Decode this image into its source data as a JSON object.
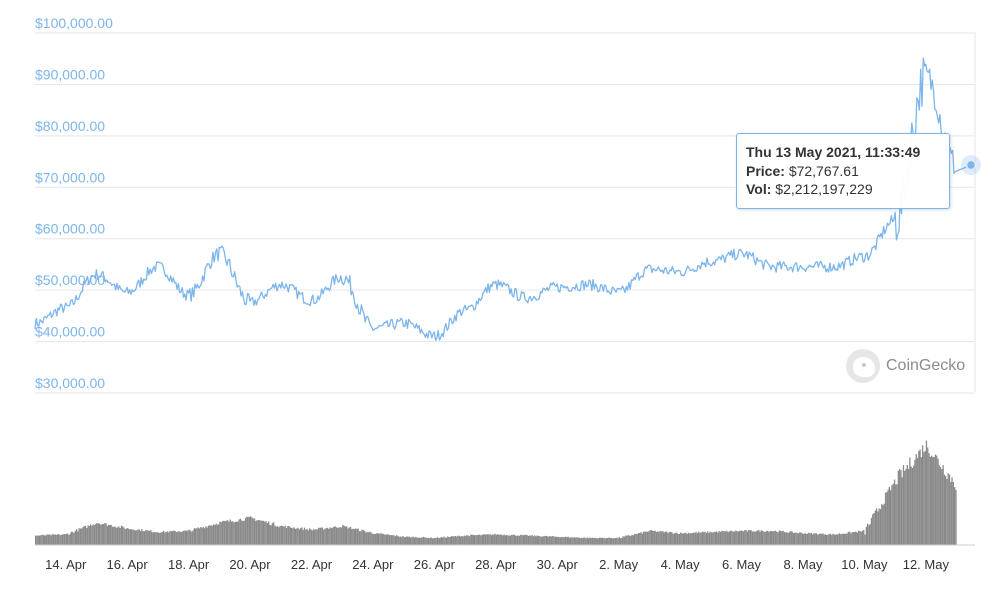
{
  "chart_data": [
    {
      "type": "line",
      "series": [
        {
          "name": "Price",
          "x": [
            "2021-04-13",
            "2021-04-14",
            "2021-04-15",
            "2021-04-16",
            "2021-04-17",
            "2021-04-18",
            "2021-04-19",
            "2021-04-20",
            "2021-04-21",
            "2021-04-22",
            "2021-04-23",
            "2021-04-24",
            "2021-04-25",
            "2021-04-26",
            "2021-04-27",
            "2021-04-28",
            "2021-04-29",
            "2021-04-30",
            "2021-05-01",
            "2021-05-02",
            "2021-05-03",
            "2021-05-04",
            "2021-05-05",
            "2021-05-06",
            "2021-05-07",
            "2021-05-08",
            "2021-05-09",
            "2021-05-10",
            "2021-05-11",
            "2021-05-12",
            "2021-05-13"
          ],
          "values": [
            42000,
            45000,
            51500,
            48000,
            53000,
            47500,
            55500,
            46000,
            49500,
            46500,
            51000,
            41000,
            42000,
            39500,
            44500,
            49500,
            47000,
            49000,
            49500,
            48000,
            52500,
            52000,
            54000,
            55500,
            53000,
            53000,
            53000,
            55000,
            62000,
            90000,
            72767.61
          ]
        }
      ],
      "y_ticks": [
        "$30,000.00",
        "$40,000.00",
        "$50,000.00",
        "$60,000.00",
        "$70,000.00",
        "$80,000.00",
        "$90,000.00",
        "$100,000.00"
      ],
      "ylim": [
        30000,
        100000
      ],
      "grid": true
    },
    {
      "type": "bar",
      "series": [
        {
          "name": "Vol",
          "x": [
            "2021-04-13",
            "2021-04-14",
            "2021-04-15",
            "2021-04-16",
            "2021-04-17",
            "2021-04-18",
            "2021-04-19",
            "2021-04-20",
            "2021-04-21",
            "2021-04-22",
            "2021-04-23",
            "2021-04-24",
            "2021-04-25",
            "2021-04-26",
            "2021-04-27",
            "2021-04-28",
            "2021-04-29",
            "2021-04-30",
            "2021-05-01",
            "2021-05-02",
            "2021-05-03",
            "2021-05-04",
            "2021-05-05",
            "2021-05-06",
            "2021-05-07",
            "2021-05-08",
            "2021-05-09",
            "2021-05-10",
            "2021-05-11",
            "2021-05-12",
            "2021-05-13"
          ],
          "values": [
            0.8,
            0.9,
            1.9,
            1.4,
            1.1,
            1.2,
            1.9,
            2.3,
            1.6,
            1.3,
            1.6,
            1.0,
            0.7,
            0.6,
            0.8,
            0.9,
            0.8,
            0.7,
            0.6,
            0.6,
            1.2,
            1.0,
            1.1,
            1.2,
            1.2,
            1.0,
            0.9,
            1.2,
            5.5,
            8.5,
            5.0
          ]
        }
      ]
    }
  ],
  "x_axis": {
    "tick_labels": [
      "14. Apr",
      "16. Apr",
      "18. Apr",
      "20. Apr",
      "22. Apr",
      "24. Apr",
      "26. Apr",
      "28. Apr",
      "30. Apr",
      "2. May",
      "4. May",
      "6. May",
      "8. May",
      "10. May",
      "12. May"
    ],
    "tick_dates": [
      "2021-04-14",
      "2021-04-16",
      "2021-04-18",
      "2021-04-20",
      "2021-04-22",
      "2021-04-24",
      "2021-04-26",
      "2021-04-28",
      "2021-04-30",
      "2021-05-02",
      "2021-05-04",
      "2021-05-06",
      "2021-05-08",
      "2021-05-10",
      "2021-05-12"
    ]
  },
  "tooltip": {
    "title": "Thu 13 May 2021, 11:33:49",
    "price_label": "Price:",
    "price_value": "$72,767.61",
    "vol_label": "Vol:",
    "vol_value": "$2,212,197,229"
  },
  "credit": {
    "text": "CoinGecko",
    "logo_icon": "coingecko-gecko-icon"
  },
  "colors": {
    "price_line": "#7cb5ec",
    "volume_fill": "#8a8a8a",
    "grid": "#e6e6e6",
    "tick_label": "#7cb5ec",
    "x_label": "#333333"
  }
}
